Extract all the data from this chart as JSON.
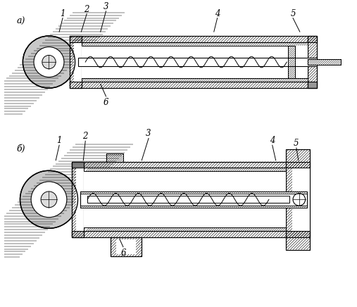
{
  "bg_color": "#ffffff",
  "line_color": "#000000",
  "label_a": "a)",
  "label_b": "б)",
  "lfs": 8.5
}
